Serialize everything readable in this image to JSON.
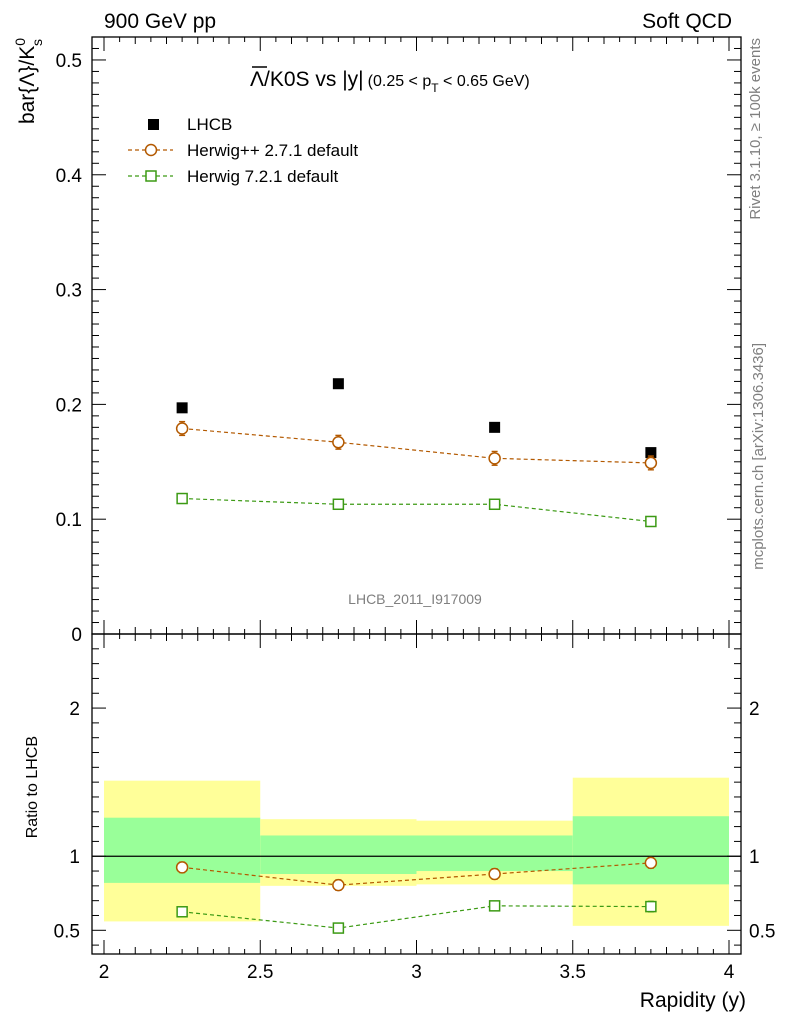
{
  "header": {
    "left": "900 GeV pp",
    "right": "Soft QCD"
  },
  "side_labels": {
    "rivet": "Rivet 3.1.10, ≥ 100k events",
    "mcplots": "mcplots.cern.ch [arXiv:1306.3436]"
  },
  "title": {
    "main": "Λ/K0S vs |y|",
    "cut_pre": "(0.25 < p",
    "cut_sub": "T",
    "cut_post": " < 0.65 GeV)"
  },
  "watermark": "LHCB_2011_I917009",
  "legend": {
    "entries": [
      {
        "label": "LHCB",
        "color": "#000000",
        "marker": "filled-square"
      },
      {
        "label": "Herwig++ 2.7.1 default",
        "color": "#b35900",
        "marker": "open-circle"
      },
      {
        "label": "Herwig 7.2.1 default",
        "color": "#3c9a14",
        "marker": "open-square"
      }
    ]
  },
  "axes": {
    "top_ylabel": "bar{Λ}/K",
    "top_ylabel_sup": "0",
    "top_ylabel_sub": "s",
    "bottom_ylabel": "Ratio to LHCB",
    "xlabel": "Rapidity (y)"
  },
  "chart_data": [
    {
      "type": "scatter",
      "panel": "main",
      "x": [
        2.25,
        2.75,
        3.25,
        3.75
      ],
      "xlim": [
        2.0,
        4.0
      ],
      "ylim": [
        0.0,
        0.52
      ],
      "x_ticks": [
        "2",
        "2.5",
        "3",
        "3.5",
        "4"
      ],
      "y_ticks": [
        "0",
        "0.1",
        "0.2",
        "0.3",
        "0.4",
        "0.5"
      ],
      "series": [
        {
          "name": "LHCB",
          "values": [
            0.197,
            0.218,
            0.18,
            0.158
          ],
          "errors": [
            0.0,
            0.0,
            0.0,
            0.0
          ],
          "color": "#000000"
        },
        {
          "name": "Herwig++ 2.7.1 default",
          "values": [
            0.179,
            0.167,
            0.153,
            0.149
          ],
          "errors": [
            0.006,
            0.006,
            0.006,
            0.006
          ],
          "color": "#b35900"
        },
        {
          "name": "Herwig 7.2.1 default",
          "values": [
            0.118,
            0.113,
            0.113,
            0.098
          ],
          "errors": [
            0.003,
            0.003,
            0.003,
            0.003
          ],
          "color": "#3c9a14"
        }
      ]
    },
    {
      "type": "scatter",
      "panel": "ratio",
      "x": [
        2.25,
        2.75,
        3.25,
        3.75
      ],
      "xlim": [
        2.0,
        4.0
      ],
      "ylim": [
        0.34,
        2.5
      ],
      "y_ticks": [
        "0.5",
        "1",
        "2"
      ],
      "reference_line": 1.0,
      "bands": [
        {
          "x_low": 2.0,
          "x_high": 2.5,
          "yellow": [
            0.56,
            1.51
          ],
          "green": [
            0.82,
            1.26
          ]
        },
        {
          "x_low": 2.5,
          "x_high": 3.0,
          "yellow": [
            0.8,
            1.25
          ],
          "green": [
            0.88,
            1.14
          ]
        },
        {
          "x_low": 3.0,
          "x_high": 3.5,
          "yellow": [
            0.81,
            1.24
          ],
          "green": [
            0.9,
            1.14
          ]
        },
        {
          "x_low": 3.5,
          "x_high": 4.0,
          "yellow": [
            0.53,
            1.53
          ],
          "green": [
            0.81,
            1.27
          ]
        }
      ],
      "series": [
        {
          "name": "Herwig++ 2.7.1 default",
          "values": [
            0.925,
            0.805,
            0.88,
            0.955
          ],
          "errors": [
            0.035,
            0.035,
            0.035,
            0.035
          ],
          "color": "#b35900"
        },
        {
          "name": "Herwig 7.2.1 default",
          "values": [
            0.625,
            0.515,
            0.665,
            0.66
          ],
          "errors": [
            0.02,
            0.02,
            0.03,
            0.035
          ],
          "color": "#3c9a14"
        }
      ]
    }
  ]
}
